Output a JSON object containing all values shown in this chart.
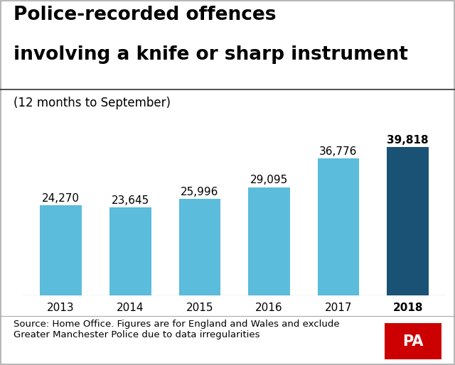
{
  "title_line1": "Police-recorded offences",
  "title_line2": "involving a knife or sharp instrument",
  "subtitle": "(12 months to September)",
  "categories": [
    "2013",
    "2014",
    "2015",
    "2016",
    "2017",
    "2018"
  ],
  "values": [
    24270,
    23645,
    25996,
    29095,
    36776,
    39818
  ],
  "labels": [
    "24,270",
    "23,645",
    "25,996",
    "29,095",
    "36,776",
    "39,818"
  ],
  "bar_colors": [
    "#5bbcdb",
    "#5bbcdb",
    "#5bbcdb",
    "#5bbcdb",
    "#5bbcdb",
    "#1a5276"
  ],
  "highlight_index": 5,
  "ylim": [
    0,
    46000
  ],
  "source_text": "Source: Home Office. Figures are for England and Wales and exclude\nGreater Manchester Police due to data irregularities",
  "pa_label": "PA",
  "pa_bg_color": "#cc0000",
  "pa_text_color": "#ffffff",
  "background_color": "#ffffff",
  "title_fontsize": 19,
  "subtitle_fontsize": 12,
  "label_fontsize": 11,
  "tick_fontsize": 11,
  "source_fontsize": 9.5
}
